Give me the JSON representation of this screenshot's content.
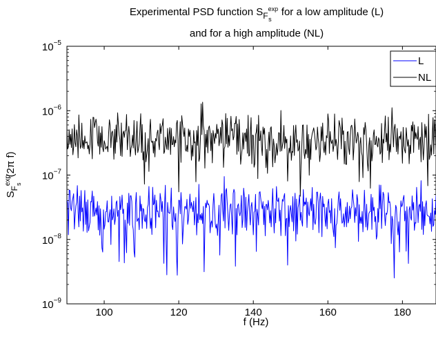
{
  "chart_data": {
    "type": "line",
    "title_line1_prefix": "Experimental PSD function S",
    "title_sub_f": "F",
    "title_sup_exp": "exp",
    "title_sub_s": "s",
    "title_line1_suffix": " for a low amplitude (L)",
    "title_line2": "and for a high amplitude (NL)",
    "xlabel": "f (Hz)",
    "ylabel_s": "S",
    "ylabel_f": "F",
    "ylabel_exp": "exp",
    "ylabel_sub_s": "s",
    "ylabel_rest": "(2π f)",
    "xlim": [
      90,
      189
    ],
    "ylim": [
      1e-09,
      1e-05
    ],
    "yscale": "log",
    "grid": false,
    "legend_position": "top-right",
    "x_ticks": [
      100,
      120,
      140,
      160,
      180
    ],
    "x_tick_labels": [
      "100",
      "120",
      "140",
      "160",
      "180"
    ],
    "y_ticks": [
      {
        "value": 1e-09,
        "base": "10",
        "exp": "−9"
      },
      {
        "value": 1e-08,
        "base": "10",
        "exp": "−8"
      },
      {
        "value": 1e-07,
        "base": "10",
        "exp": "−7"
      },
      {
        "value": 1e-06,
        "base": "10",
        "exp": "−6"
      },
      {
        "value": 1e-05,
        "base": "10",
        "exp": "−5"
      }
    ],
    "series": [
      {
        "name": "L",
        "color": "#0000ff",
        "center_log10": -7.55,
        "spread": 0.18,
        "noise": 0.55,
        "seed": 7
      },
      {
        "name": "NL",
        "color": "#000000",
        "center_log10": -6.45,
        "spread": 0.18,
        "noise": 0.55,
        "seed": 3
      }
    ],
    "sample_step_hz": 0.2
  }
}
